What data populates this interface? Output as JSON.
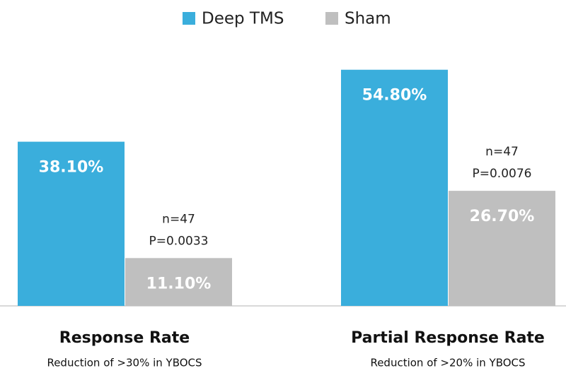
{
  "chart_data": {
    "type": "bar",
    "categories": [
      "Response Rate",
      "Partial Response Rate"
    ],
    "category_subtitles": [
      "Reduction of >30% in YBOCS",
      "Reduction of >20% in YBOCS"
    ],
    "series": [
      {
        "name": "Deep TMS",
        "color": "#3aaedc",
        "values": [
          38.1,
          54.8
        ],
        "value_labels": [
          "38.10%",
          "54.80%"
        ]
      },
      {
        "name": "Sham",
        "color": "#bfbfbf",
        "values": [
          11.1,
          26.7
        ],
        "value_labels": [
          "11.10%",
          "26.70%"
        ]
      }
    ],
    "annotations": [
      [
        "n=47",
        "P=0.0033"
      ],
      [
        "n=47",
        "P=0.0076"
      ]
    ],
    "legend": "top"
  }
}
